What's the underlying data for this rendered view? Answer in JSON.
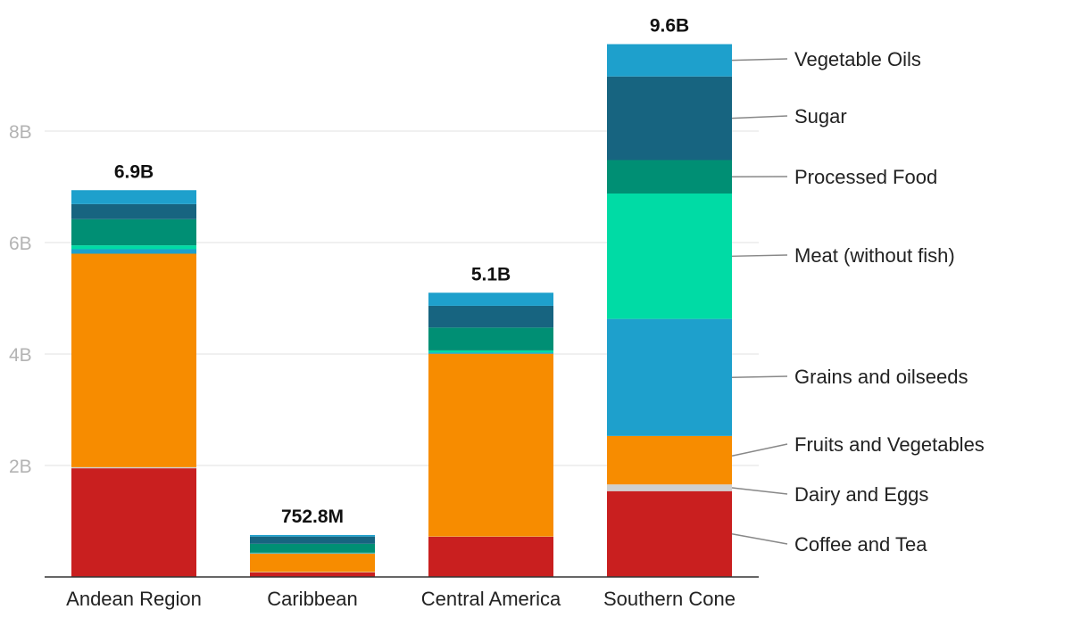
{
  "chart_data": {
    "type": "bar",
    "stacked": true,
    "title": "",
    "xlabel": "",
    "ylabel": "",
    "ylim": [
      0,
      9600000000
    ],
    "yticks": [
      {
        "value": 2000000000,
        "label": "2B"
      },
      {
        "value": 4000000000,
        "label": "4B"
      },
      {
        "value": 6000000000,
        "label": "6B"
      },
      {
        "value": 8000000000,
        "label": "8B"
      }
    ],
    "grid": true,
    "legend_position": "right",
    "categories": [
      "Andean Region",
      "Caribbean",
      "Central America",
      "Southern Cone"
    ],
    "totals": [
      "6.9B",
      "752.8M",
      "5.1B",
      "9.6B"
    ],
    "series": [
      {
        "name": "Coffee and Tea",
        "color": "#c91f1f",
        "values": [
          1950000000,
          80000000,
          720000000,
          1540000000
        ]
      },
      {
        "name": "Dairy and Eggs",
        "color": "#cfcfcf",
        "values": [
          20000000,
          10000000,
          5000000,
          120000000
        ]
      },
      {
        "name": "Fruits and Vegetables",
        "color": "#f78c00",
        "values": [
          3830000000,
          330000000,
          3280000000,
          870000000
        ]
      },
      {
        "name": "Grains and oilseeds",
        "color": "#1ea0cc",
        "values": [
          80000000,
          10000000,
          20000000,
          2100000000
        ]
      },
      {
        "name": "Meat (without fish)",
        "color": "#00dba5",
        "values": [
          70000000,
          5000000,
          40000000,
          2250000000
        ]
      },
      {
        "name": "Processed Food",
        "color": "#008f74",
        "values": [
          470000000,
          160000000,
          410000000,
          600000000
        ]
      },
      {
        "name": "Sugar",
        "color": "#176480",
        "values": [
          270000000,
          130000000,
          390000000,
          1500000000
        ]
      },
      {
        "name": "Vegetable Oils",
        "color": "#1ea0cc",
        "values": [
          250000000,
          27800000,
          235000000,
          580000000
        ]
      }
    ]
  }
}
